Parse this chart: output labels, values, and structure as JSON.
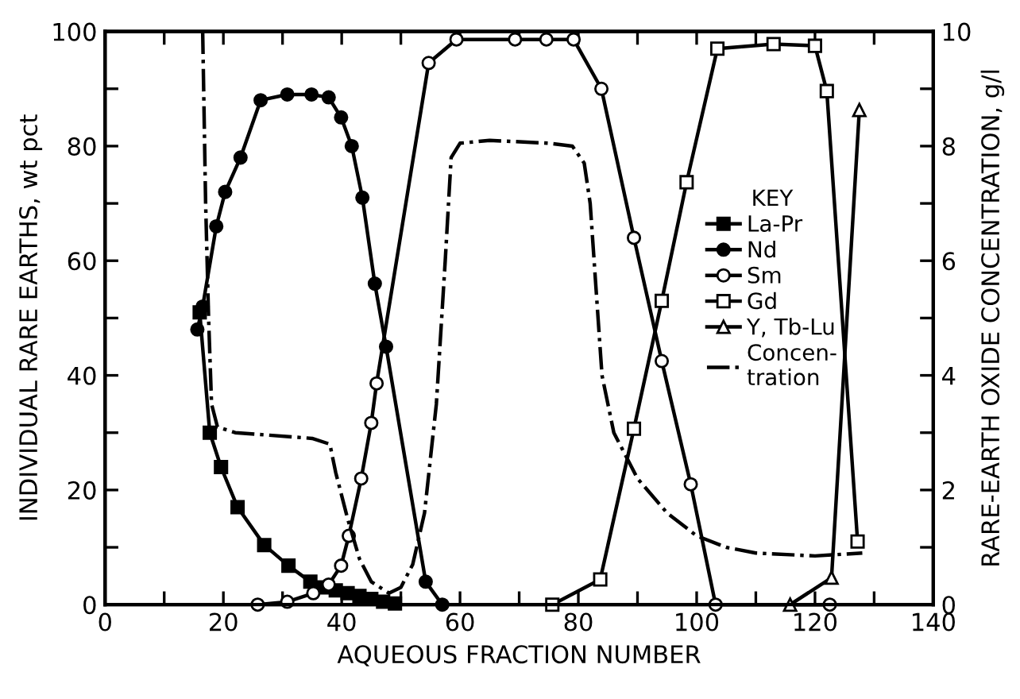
{
  "chart_data": {
    "type": "line",
    "xlabel": "AQUEOUS FRACTION NUMBER",
    "ylabel": "INDIVIDUAL RARE EARTHS, wt pct",
    "y2label": "RARE-EARTH OXIDE CONCENTRATION, g/l",
    "legend_title": "KEY",
    "legend": "right",
    "grid": false,
    "xlim": [
      0,
      140
    ],
    "xticks": [
      0,
      {
        "value": 10,
        "label": null
      },
      20,
      {
        "value": 30,
        "label": null
      },
      40,
      {
        "value": 50,
        "label": null
      },
      60,
      {
        "value": 70,
        "label": null
      },
      80,
      {
        "value": 90,
        "label": null
      },
      100,
      {
        "value": 110,
        "label": null
      },
      120,
      {
        "value": 130,
        "label": null
      },
      140
    ],
    "ylim": [
      0,
      100
    ],
    "yticks": [
      0,
      {
        "value": 10,
        "label": null
      },
      20,
      {
        "value": 30,
        "label": null
      },
      40,
      {
        "value": 50,
        "label": null
      },
      60,
      {
        "value": 70,
        "label": null
      },
      80,
      {
        "value": 90,
        "label": null
      },
      100
    ],
    "y2lim": [
      0,
      10
    ],
    "y2ticks": [
      0,
      {
        "value": 1,
        "label": null
      },
      2,
      {
        "value": 3,
        "label": null
      },
      4,
      {
        "value": 5,
        "label": null
      },
      6,
      {
        "value": 7,
        "label": null
      },
      8,
      {
        "value": 9,
        "label": null
      },
      10
    ],
    "series": [
      {
        "name": "La-Pr",
        "color": "#000000",
        "marker": "square",
        "line_style": "solid",
        "x": [
          16,
          17.7,
          19.6,
          22.4,
          26.9,
          31,
          34.7,
          37,
          39,
          41,
          43,
          45,
          47,
          49
        ],
        "values": [
          51,
          30,
          24,
          17,
          10.4,
          6.8,
          4,
          3,
          2.5,
          2,
          1.5,
          1,
          0.5,
          0.2
        ]
      },
      {
        "name": "Nd",
        "color": "#000000",
        "marker": "circle",
        "line_style": "solid",
        "x": [
          15.6,
          16.5,
          18.8,
          20.3,
          22.9,
          26.3,
          30.8,
          34.9,
          37.8,
          39.9,
          41.7,
          43.5,
          45.6,
          47.5,
          54.2,
          57
        ],
        "values": [
          48,
          52,
          66,
          72,
          78,
          88,
          89,
          89,
          88.5,
          85,
          80,
          71,
          56,
          45,
          4,
          0
        ]
      },
      {
        "name": "Sm",
        "color": "#000000",
        "marker": "circle",
        "line_style": "solid",
        "x": [
          25.8,
          30.8,
          35.2,
          37.8,
          39.9,
          41.2,
          43.3,
          45,
          45.9,
          54.7,
          59.4,
          69.3,
          74.6,
          79.2,
          83.9,
          89.4,
          94.1,
          99,
          103.2,
          122.5
        ],
        "values": [
          0,
          0.5,
          2,
          3.5,
          6.8,
          12,
          22,
          31.7,
          38.6,
          94.5,
          98.6,
          98.6,
          98.6,
          98.6,
          90,
          64,
          42.5,
          21,
          0,
          0
        ]
      },
      {
        "name": "Gd",
        "color": "#000000",
        "marker": "square",
        "line_style": "solid",
        "x": [
          75.6,
          83.7,
          89.4,
          94.1,
          98.3,
          103.5,
          113,
          120,
          122,
          127.2
        ],
        "values": [
          0,
          4.4,
          30.7,
          53,
          73.7,
          97,
          97.8,
          97.5,
          89.6,
          11
        ]
      },
      {
        "name": "Y, Tb-Lu",
        "color": "#000000",
        "marker": "triangle",
        "line_style": "solid",
        "x": [
          115.8,
          122.8,
          127.5
        ],
        "values": [
          0,
          4.7,
          86.3
        ]
      },
      {
        "name": "Concen-\ntration",
        "color": "#000000",
        "marker": "none",
        "line_style": "dashdot",
        "axis": "y2",
        "x": [
          16.5,
          17,
          17.5,
          18,
          19,
          22,
          35,
          38,
          39,
          41,
          43,
          45,
          48,
          50,
          52,
          54,
          56,
          57.5,
          58.5,
          60,
          65,
          75,
          79,
          81,
          82,
          83,
          84,
          86,
          90,
          95,
          100,
          105,
          110,
          120,
          128
        ],
        "values": [
          10,
          7,
          5,
          3.5,
          3.1,
          3.0,
          2.9,
          2.8,
          2.3,
          1.5,
          0.8,
          0.4,
          0.2,
          0.3,
          0.7,
          1.6,
          3.5,
          6,
          7.8,
          8.05,
          8.1,
          8.05,
          8.0,
          7.7,
          7,
          5.5,
          4,
          3.0,
          2.2,
          1.6,
          1.2,
          1.0,
          0.9,
          0.85,
          0.9
        ]
      }
    ]
  }
}
